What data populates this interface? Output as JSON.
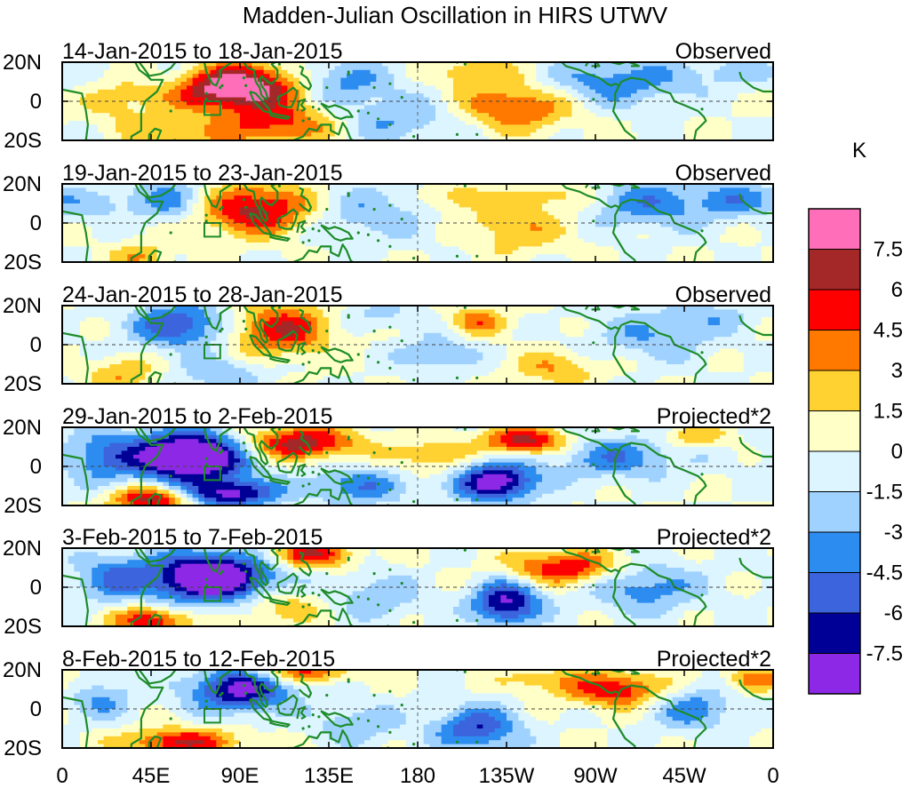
{
  "title": "Madden-Julian Oscillation in HIRS UTWV",
  "unit": "K",
  "lat_labels": [
    "20N",
    "0",
    "20S"
  ],
  "lon_labels": [
    "0",
    "45E",
    "90E",
    "135E",
    "180",
    "135W",
    "90W",
    "45W",
    "0"
  ],
  "panels": [
    {
      "dates": "14-Jan-2015 to 18-Jan-2015",
      "type": "Observed"
    },
    {
      "dates": "19-Jan-2015 to 23-Jan-2015",
      "type": "Observed"
    },
    {
      "dates": "24-Jan-2015 to 28-Jan-2015",
      "type": "Observed"
    },
    {
      "dates": "29-Jan-2015 to 2-Feb-2015",
      "type": "Projected*2"
    },
    {
      "dates": "3-Feb-2015 to 7-Feb-2015",
      "type": "Projected*2"
    },
    {
      "dates": "8-Feb-2015 to 12-Feb-2015",
      "type": "Projected*2"
    }
  ],
  "colorbar": {
    "labels": [
      "7.5",
      "6",
      "4.5",
      "3",
      "1.5",
      "0",
      "-1.5",
      "-3",
      "-4.5",
      "-6",
      "-7.5"
    ],
    "colors": [
      "#ff6eb9",
      "#a52828",
      "#ff0000",
      "#ff7800",
      "#ffd232",
      "#ffffc8",
      "#dcf5ff",
      "#a0d2ff",
      "#2d8cf0",
      "#3c64dc",
      "#000096",
      "#8c28e6"
    ]
  },
  "colors": {
    "coast": "#1e8c28",
    "palette": [
      "#8c28e6",
      "#000096",
      "#3c64dc",
      "#2d8cf0",
      "#a0d2ff",
      "#dcf5ff",
      "#ffffc8",
      "#ffd232",
      "#ff7800",
      "#ff0000",
      "#a52828",
      "#ff6eb9"
    ]
  },
  "anomalies": [
    [
      {
        "lon": 88,
        "lat": 7,
        "amp": 10,
        "slon": 24,
        "slat": 8
      },
      {
        "lon": 110,
        "lat": -12,
        "amp": 5,
        "slon": 20,
        "slat": 7
      },
      {
        "lon": 60,
        "lat": -18,
        "amp": 3,
        "slon": 18,
        "slat": 6
      },
      {
        "lon": 230,
        "lat": -3,
        "amp": 5,
        "slon": 20,
        "slat": 8
      },
      {
        "lon": 210,
        "lat": 15,
        "amp": 3,
        "slon": 14,
        "slat": 6
      },
      {
        "lon": 30,
        "lat": 0,
        "amp": 2,
        "slon": 14,
        "slat": 9
      },
      {
        "lon": 140,
        "lat": 10,
        "amp": -4,
        "slon": 18,
        "slat": 8
      },
      {
        "lon": 170,
        "lat": -10,
        "amp": -3,
        "slon": 22,
        "slat": 9
      },
      {
        "lon": 280,
        "lat": 10,
        "amp": -4,
        "slon": 25,
        "slat": 9
      },
      {
        "lon": 340,
        "lat": 15,
        "amp": -2,
        "slon": 20,
        "slat": 6
      },
      {
        "lon": 55,
        "lat": 12,
        "amp": -2,
        "slon": 14,
        "slat": 6
      }
    ],
    [
      {
        "lon": 100,
        "lat": 7,
        "amp": 7,
        "slon": 22,
        "slat": 9
      },
      {
        "lon": 230,
        "lat": -2,
        "amp": 3,
        "slon": 18,
        "slat": 9
      },
      {
        "lon": 200,
        "lat": 13,
        "amp": 3,
        "slon": 10,
        "slat": 5
      },
      {
        "lon": 250,
        "lat": 14,
        "amp": 2.5,
        "slon": 14,
        "slat": 5
      },
      {
        "lon": 40,
        "lat": -17,
        "amp": 3,
        "slon": 10,
        "slat": 5
      },
      {
        "lon": 55,
        "lat": 12,
        "amp": -4,
        "slon": 14,
        "slat": 8
      },
      {
        "lon": 150,
        "lat": 5,
        "amp": -3,
        "slon": 25,
        "slat": 10
      },
      {
        "lon": 300,
        "lat": 10,
        "amp": -4,
        "slon": 25,
        "slat": 9
      },
      {
        "lon": 345,
        "lat": 12,
        "amp": -3,
        "slon": 15,
        "slat": 6
      },
      {
        "lon": 20,
        "lat": 10,
        "amp": -2,
        "slon": 12,
        "slat": 6
      }
    ],
    [
      {
        "lon": 110,
        "lat": 8,
        "amp": 6,
        "slon": 18,
        "slat": 9
      },
      {
        "lon": 210,
        "lat": 12,
        "amp": 4,
        "slon": 10,
        "slat": 5
      },
      {
        "lon": 250,
        "lat": -12,
        "amp": 3,
        "slon": 15,
        "slat": 6
      },
      {
        "lon": 30,
        "lat": -15,
        "amp": 3,
        "slon": 12,
        "slat": 6
      },
      {
        "lon": 60,
        "lat": 10,
        "amp": -6,
        "slon": 18,
        "slat": 8
      },
      {
        "lon": 80,
        "lat": -15,
        "amp": -3,
        "slon": 15,
        "slat": 6
      },
      {
        "lon": 190,
        "lat": -5,
        "amp": -3,
        "slon": 14,
        "slat": 7
      },
      {
        "lon": 300,
        "lat": 5,
        "amp": -3,
        "slon": 22,
        "slat": 9
      },
      {
        "lon": 160,
        "lat": 15,
        "amp": -2,
        "slon": 15,
        "slat": 5
      },
      {
        "lon": 330,
        "lat": 15,
        "amp": -2,
        "slon": 14,
        "slat": 5
      }
    ],
    [
      {
        "lon": 65,
        "lat": 5,
        "amp": -12,
        "slon": 20,
        "slat": 9
      },
      {
        "lon": 85,
        "lat": -14,
        "amp": -8,
        "slon": 16,
        "slat": 5
      },
      {
        "lon": 220,
        "lat": -8,
        "amp": -9,
        "slon": 14,
        "slat": 7
      },
      {
        "lon": 120,
        "lat": 12,
        "amp": 7,
        "slon": 20,
        "slat": 6
      },
      {
        "lon": 235,
        "lat": 13,
        "amp": 7,
        "slon": 15,
        "slat": 5
      },
      {
        "lon": 45,
        "lat": -17,
        "amp": 7,
        "slon": 14,
        "slat": 5
      },
      {
        "lon": 150,
        "lat": -10,
        "amp": -4,
        "slon": 20,
        "slat": 7
      },
      {
        "lon": 185,
        "lat": 5,
        "amp": 3,
        "slon": 14,
        "slat": 6
      },
      {
        "lon": 280,
        "lat": 5,
        "amp": -4,
        "slon": 25,
        "slat": 8
      },
      {
        "lon": 320,
        "lat": 15,
        "amp": 3,
        "slon": 12,
        "slat": 4
      },
      {
        "lon": 20,
        "lat": 5,
        "amp": -4,
        "slon": 15,
        "slat": 10
      }
    ],
    [
      {
        "lon": 75,
        "lat": 5,
        "amp": -11,
        "slon": 22,
        "slat": 9
      },
      {
        "lon": 45,
        "lat": -17,
        "amp": 6,
        "slon": 14,
        "slat": 5
      },
      {
        "lon": 125,
        "lat": 17,
        "amp": 6,
        "slon": 15,
        "slat": 5
      },
      {
        "lon": 255,
        "lat": 10,
        "amp": 6,
        "slon": 20,
        "slat": 6
      },
      {
        "lon": 225,
        "lat": -8,
        "amp": -8,
        "slon": 12,
        "slat": 8
      },
      {
        "lon": 110,
        "lat": -10,
        "amp": 3,
        "slon": 14,
        "slat": 6
      },
      {
        "lon": 160,
        "lat": -5,
        "amp": -3,
        "slon": 15,
        "slat": 8
      },
      {
        "lon": 295,
        "lat": 0,
        "amp": -4,
        "slon": 20,
        "slat": 9
      },
      {
        "lon": 25,
        "lat": 5,
        "amp": -4,
        "slon": 14,
        "slat": 9
      }
    ],
    [
      {
        "lon": 90,
        "lat": 10,
        "amp": -8,
        "slon": 18,
        "slat": 8
      },
      {
        "lon": 120,
        "lat": 19,
        "amp": 5,
        "slon": 18,
        "slat": 4
      },
      {
        "lon": 60,
        "lat": -17,
        "amp": 6,
        "slon": 20,
        "slat": 5
      },
      {
        "lon": 280,
        "lat": 10,
        "amp": 6,
        "slon": 18,
        "slat": 6
      },
      {
        "lon": 350,
        "lat": 15,
        "amp": 4,
        "slon": 10,
        "slat": 5
      },
      {
        "lon": 210,
        "lat": -10,
        "amp": -6,
        "slon": 15,
        "slat": 8
      },
      {
        "lon": 150,
        "lat": -8,
        "amp": -3,
        "slon": 15,
        "slat": 7
      },
      {
        "lon": 320,
        "lat": 0,
        "amp": -4,
        "slon": 15,
        "slat": 8
      },
      {
        "lon": 240,
        "lat": 15,
        "amp": 2.5,
        "slon": 14,
        "slat": 4
      },
      {
        "lon": 20,
        "lat": 5,
        "amp": -3,
        "slon": 12,
        "slat": 8
      }
    ]
  ]
}
